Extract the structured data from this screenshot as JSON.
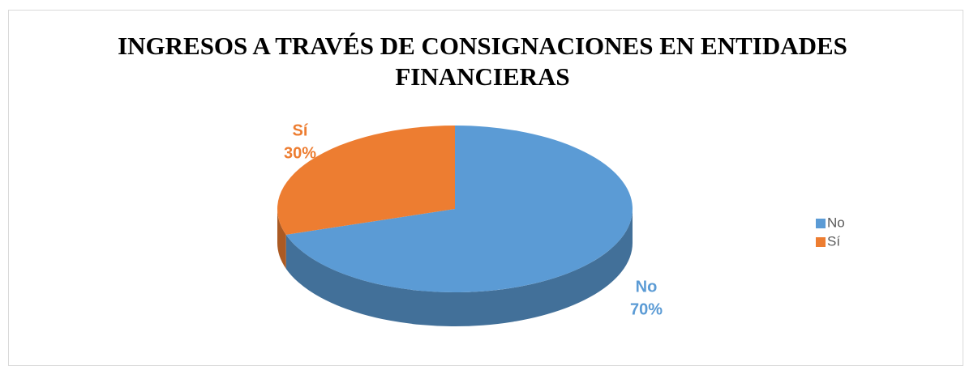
{
  "chart_data": {
    "type": "pie",
    "title": "INGRESOS A TRAVÉS DE CONSIGNACIONES EN ENTIDADES FINANCIERAS",
    "categories": [
      "No",
      "Sí"
    ],
    "values": [
      70,
      30
    ],
    "value_labels": [
      "70%",
      "30%"
    ],
    "colors": [
      "#5b9bd5",
      "#ed7d31"
    ],
    "legend": "right"
  }
}
